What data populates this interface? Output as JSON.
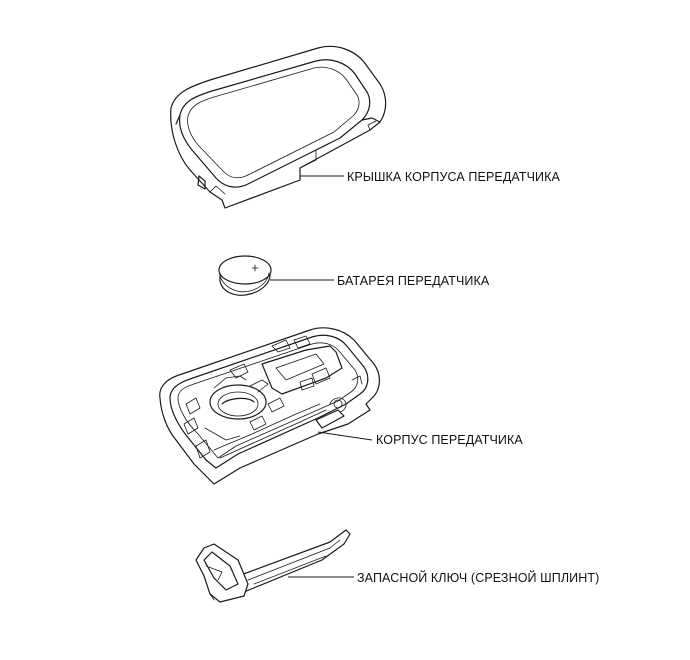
{
  "labels": {
    "cover": "КРЫШКА КОРПУСА ПЕРЕДАТЧИКА",
    "battery": "БАТАРЕЯ ПЕРЕДАТЧИКА",
    "case": "КОРПУС ПЕРЕДАТЧИКА",
    "key": "ЗАПАСНОЙ КЛЮЧ (СРЕЗНОЙ ШПЛИНТ)"
  }
}
